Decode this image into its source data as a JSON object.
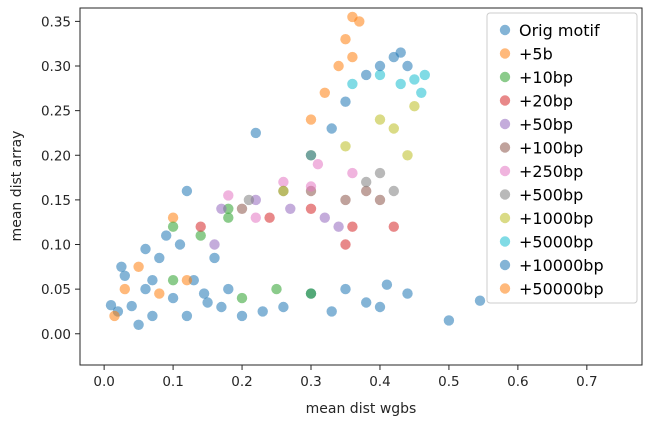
{
  "chart_data": {
    "type": "scatter",
    "title": "",
    "xlabel": "mean dist wgbs",
    "ylabel": "mean dist array",
    "xlim": [
      -0.035,
      0.78
    ],
    "ylim": [
      -0.035,
      0.365
    ],
    "xticks": [
      "0.0",
      "0.1",
      "0.2",
      "0.3",
      "0.4",
      "0.5",
      "0.6",
      "0.7"
    ],
    "yticks": [
      "0.00",
      "0.05",
      "0.10",
      "0.15",
      "0.20",
      "0.25",
      "0.30",
      "0.35"
    ],
    "grid": false,
    "legend_position": "top-right",
    "marker_alpha": 0.55,
    "series": [
      {
        "name": "Orig motif",
        "color": "#1f77b4",
        "points": [
          [
            0.01,
            0.032
          ],
          [
            0.02,
            0.025
          ],
          [
            0.025,
            0.075
          ],
          [
            0.04,
            0.031
          ],
          [
            0.05,
            0.01
          ],
          [
            0.06,
            0.05
          ],
          [
            0.07,
            0.02
          ],
          [
            0.08,
            0.085
          ],
          [
            0.09,
            0.11
          ],
          [
            0.1,
            0.04
          ],
          [
            0.12,
            0.16
          ],
          [
            0.12,
            0.02
          ],
          [
            0.15,
            0.035
          ],
          [
            0.18,
            0.05
          ],
          [
            0.22,
            0.225
          ],
          [
            0.2,
            0.02
          ],
          [
            0.23,
            0.025
          ],
          [
            0.26,
            0.03
          ],
          [
            0.3,
            0.045
          ],
          [
            0.33,
            0.025
          ],
          [
            0.35,
            0.05
          ],
          [
            0.38,
            0.035
          ],
          [
            0.41,
            0.055
          ],
          [
            0.4,
            0.03
          ],
          [
            0.5,
            0.015
          ],
          [
            0.545,
            0.037
          ],
          [
            0.44,
            0.045
          ],
          [
            0.13,
            0.06
          ],
          [
            0.16,
            0.085
          ],
          [
            0.06,
            0.095
          ],
          [
            0.03,
            0.065
          ],
          [
            0.11,
            0.1
          ],
          [
            0.07,
            0.06
          ],
          [
            0.145,
            0.045
          ],
          [
            0.17,
            0.03
          ]
        ]
      },
      {
        "name": "+5b",
        "color": "#ff7f0e",
        "points": [
          [
            0.015,
            0.02
          ],
          [
            0.03,
            0.05
          ],
          [
            0.05,
            0.075
          ],
          [
            0.08,
            0.045
          ],
          [
            0.1,
            0.13
          ],
          [
            0.12,
            0.06
          ]
        ]
      },
      {
        "name": "+10bp",
        "color": "#2ca02c",
        "points": [
          [
            0.1,
            0.12
          ],
          [
            0.14,
            0.11
          ],
          [
            0.18,
            0.13
          ],
          [
            0.18,
            0.14
          ],
          [
            0.1,
            0.06
          ],
          [
            0.2,
            0.04
          ],
          [
            0.25,
            0.05
          ],
          [
            0.3,
            0.045
          ]
        ]
      },
      {
        "name": "+20bp",
        "color": "#d62728",
        "points": [
          [
            0.14,
            0.12
          ],
          [
            0.24,
            0.13
          ],
          [
            0.3,
            0.14
          ],
          [
            0.35,
            0.1
          ],
          [
            0.36,
            0.12
          ],
          [
            0.42,
            0.12
          ]
        ]
      },
      {
        "name": "+50bp",
        "color": "#9467bd",
        "points": [
          [
            0.16,
            0.1
          ],
          [
            0.17,
            0.14
          ],
          [
            0.22,
            0.15
          ],
          [
            0.27,
            0.14
          ],
          [
            0.32,
            0.13
          ],
          [
            0.34,
            0.12
          ]
        ]
      },
      {
        "name": "+100bp",
        "color": "#8c564b",
        "points": [
          [
            0.2,
            0.14
          ],
          [
            0.3,
            0.16
          ],
          [
            0.35,
            0.15
          ],
          [
            0.38,
            0.16
          ],
          [
            0.4,
            0.15
          ]
        ]
      },
      {
        "name": "+250bp",
        "color": "#e377c2",
        "points": [
          [
            0.18,
            0.155
          ],
          [
            0.22,
            0.13
          ],
          [
            0.26,
            0.17
          ],
          [
            0.3,
            0.165
          ],
          [
            0.31,
            0.19
          ],
          [
            0.36,
            0.18
          ]
        ]
      },
      {
        "name": "+500bp",
        "color": "#7f7f7f",
        "points": [
          [
            0.21,
            0.15
          ],
          [
            0.26,
            0.16
          ],
          [
            0.38,
            0.17
          ],
          [
            0.4,
            0.18
          ],
          [
            0.42,
            0.16
          ]
        ]
      },
      {
        "name": "+1000bp",
        "color": "#bcbd22",
        "points": [
          [
            0.26,
            0.16
          ],
          [
            0.3,
            0.2
          ],
          [
            0.35,
            0.21
          ],
          [
            0.4,
            0.24
          ],
          [
            0.42,
            0.23
          ],
          [
            0.44,
            0.2
          ],
          [
            0.45,
            0.255
          ]
        ]
      },
      {
        "name": "+5000bp",
        "color": "#17becf",
        "points": [
          [
            0.36,
            0.28
          ],
          [
            0.4,
            0.29
          ],
          [
            0.43,
            0.28
          ],
          [
            0.45,
            0.285
          ],
          [
            0.465,
            0.29
          ],
          [
            0.46,
            0.27
          ]
        ]
      },
      {
        "name": "+10000bp",
        "color": "#1f77b4",
        "points": [
          [
            0.3,
            0.2
          ],
          [
            0.33,
            0.23
          ],
          [
            0.35,
            0.26
          ],
          [
            0.38,
            0.29
          ],
          [
            0.4,
            0.3
          ],
          [
            0.42,
            0.31
          ],
          [
            0.43,
            0.315
          ],
          [
            0.44,
            0.3
          ]
        ]
      },
      {
        "name": "+50000bp",
        "color": "#ff7f0e",
        "points": [
          [
            0.3,
            0.24
          ],
          [
            0.32,
            0.27
          ],
          [
            0.34,
            0.3
          ],
          [
            0.35,
            0.33
          ],
          [
            0.36,
            0.355
          ],
          [
            0.37,
            0.35
          ],
          [
            0.36,
            0.31
          ]
        ]
      }
    ]
  }
}
